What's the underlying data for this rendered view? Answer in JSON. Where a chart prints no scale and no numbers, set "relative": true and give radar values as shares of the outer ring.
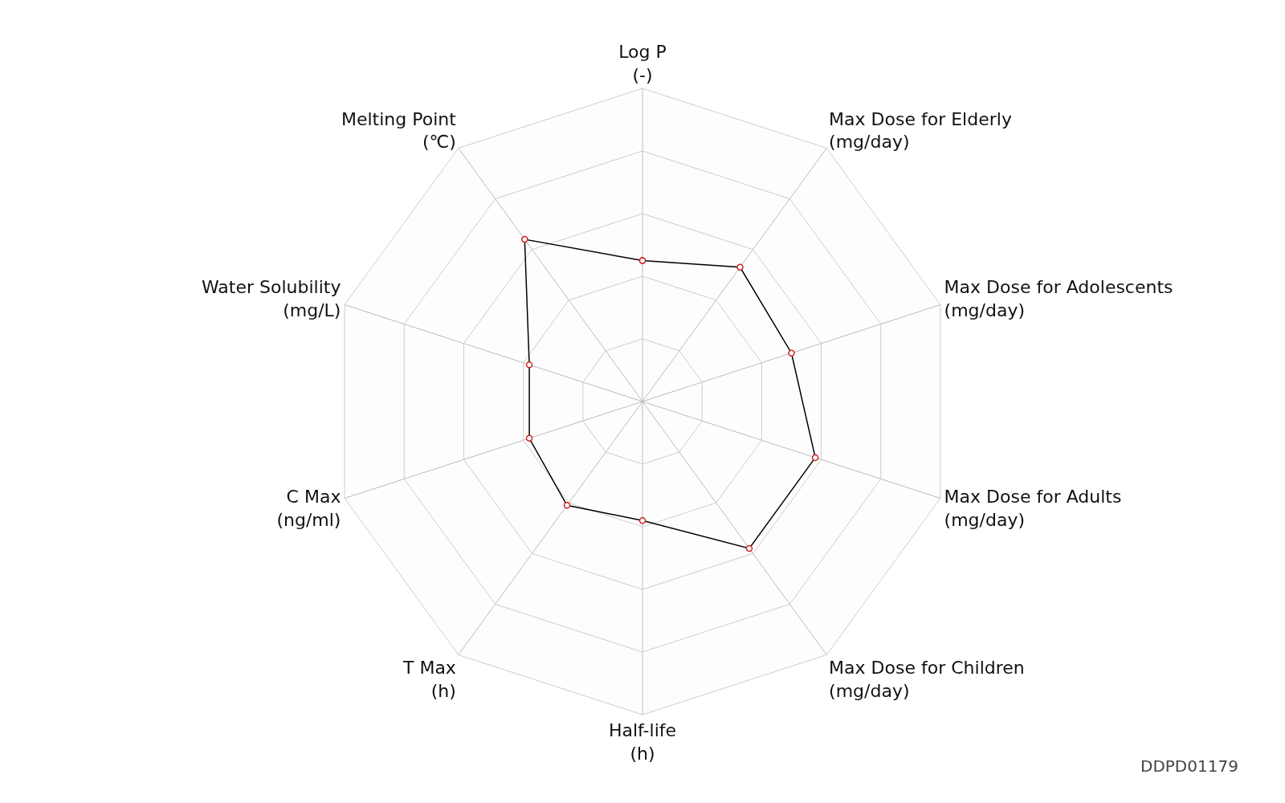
{
  "chart_data": {
    "type": "radar",
    "relative": true,
    "categories": [
      "Log P\n(-)",
      "Max Dose for Elderly\n(mg/day)",
      "Max Dose for Adolescents\n(mg/day)",
      "Max Dose for Adults\n(mg/day)",
      "Max Dose for Children\n(mg/day)",
      "Half-life\n(h)",
      "T Max\n(h)",
      "C Max\n(ng/ml)",
      "Water Solubility\n(mg/L)",
      "Melting Point\n(℃)"
    ],
    "series": [
      {
        "color": "#000000",
        "values": [
          0.45,
          0.53,
          0.5,
          0.58,
          0.58,
          0.38,
          0.41,
          0.38,
          0.38,
          0.64
        ]
      }
    ],
    "marker": "circle",
    "line_style": "solid",
    "legend": false,
    "annotations": [
      "DDPD01179"
    ]
  }
}
